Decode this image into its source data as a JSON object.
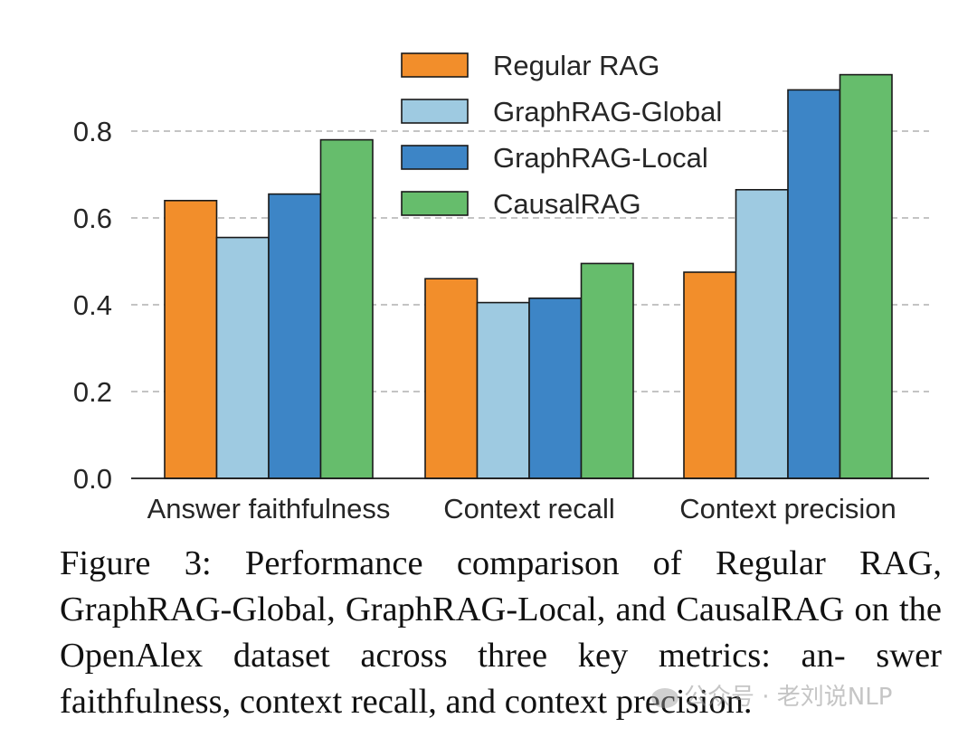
{
  "chart_data": {
    "type": "bar",
    "categories": [
      "Answer faithfulness",
      "Context recall",
      "Context precision"
    ],
    "series": [
      {
        "name": "Regular RAG",
        "color": "#f28e2b",
        "values": [
          0.64,
          0.46,
          0.475
        ]
      },
      {
        "name": "GraphRAG-Global",
        "color": "#9ecae1",
        "values": [
          0.555,
          0.405,
          0.665
        ]
      },
      {
        "name": "GraphRAG-Local",
        "color": "#3d85c6",
        "values": [
          0.655,
          0.415,
          0.895
        ]
      },
      {
        "name": "CausalRAG",
        "color": "#66bd6c",
        "values": [
          0.78,
          0.495,
          0.93
        ]
      }
    ],
    "yticks": [
      "0.0",
      "0.2",
      "0.4",
      "0.6",
      "0.8"
    ],
    "ylim": [
      0,
      0.95
    ],
    "title": "",
    "xlabel": "",
    "ylabel": "",
    "grid": "horizontal dashed",
    "legend_position": "top-center"
  },
  "caption": {
    "text": "Figure 3: Performance comparison of Regular RAG, GraphRAG-Global, GraphRAG-Local, and CausalRAG on the OpenAlex dataset across three key metrics: an- swer faithfulness, context recall, and context precision."
  },
  "watermark": {
    "text": "公众号 · 老刘说NLP"
  }
}
